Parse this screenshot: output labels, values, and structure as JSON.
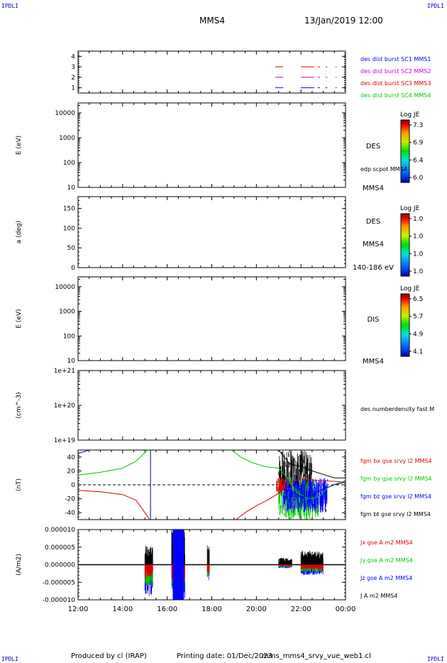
{
  "corner_label": "IPDLI",
  "header": {
    "spacecraft": "MMS4",
    "datetime": "13/Jan/2019 12:00"
  },
  "footer": {
    "produced": "Produced by cl (IRAP)",
    "printing": "Printing date: 01/Dec/2023",
    "file": "mms_mms4_srvy_vue_web1.cl"
  },
  "time_axis": {
    "ticks": [
      "12:00",
      "14:00",
      "16:00",
      "18:00",
      "20:00",
      "22:00",
      "00:00"
    ]
  },
  "colors": {
    "blue": "#0000ff",
    "magenta": "#cc00cc",
    "red": "#dd0000",
    "green": "#00cc00",
    "black": "#000000"
  },
  "chart_data": [
    {
      "type": "line",
      "panel": "burst",
      "yticks": [
        "4",
        "3",
        "2",
        "1"
      ],
      "ylim": [
        0.5,
        4.5
      ],
      "legend": [
        {
          "label": "des dist burst SC1 MMS1",
          "color": "#0000ff"
        },
        {
          "label": "des dist burst SC2 MMS2",
          "color": "#cc00cc"
        },
        {
          "label": "des dist burst SC3 MMS3",
          "color": "#dd0000"
        },
        {
          "label": "des dist burst SC4 MMS4",
          "color": "#00cc00"
        }
      ],
      "series": [
        {
          "level": 3,
          "intervals": [
            [
              20.85,
              21.2
            ],
            [
              22.0,
              22.6
            ],
            [
              22.75,
              22.85
            ],
            [
              23.1,
              23.18
            ],
            [
              23.55,
              23.6
            ]
          ]
        },
        {
          "level": 2,
          "intervals": [
            [
              20.85,
              21.2
            ],
            [
              22.0,
              22.6
            ],
            [
              22.75,
              22.85
            ],
            [
              23.1,
              23.18
            ],
            [
              23.55,
              23.6
            ]
          ]
        },
        {
          "level": 1,
          "intervals": [
            [
              20.85,
              21.2
            ],
            [
              22.0,
              22.6
            ],
            [
              22.75,
              22.85
            ],
            [
              23.1,
              23.18
            ],
            [
              23.55,
              23.6
            ]
          ]
        }
      ]
    },
    {
      "type": "heatmap",
      "panel": "des-energy",
      "ylabel": "E (eV)",
      "scale": "log",
      "yticks": [
        "10000",
        "1000",
        "100",
        "10"
      ],
      "ylim": [
        10,
        25000
      ],
      "right_labels": [
        "DES",
        "edp scpot MMS4",
        "MMS4"
      ],
      "colorbar": {
        "title": "Log JE",
        "ticks": [
          "7.3",
          "6.9",
          "6.4",
          "6.0"
        ]
      }
    },
    {
      "type": "heatmap",
      "panel": "des-pitch",
      "ylabel": "a (deg)",
      "yticks": [
        "150",
        "100",
        "50",
        "0"
      ],
      "ylim": [
        0,
        180
      ],
      "right_labels": [
        "DES",
        "MMS4",
        "140-186 eV"
      ],
      "colorbar": {
        "title": "Log JE",
        "ticks": [
          "1.0",
          "1.0",
          "1.0",
          "1.0"
        ]
      }
    },
    {
      "type": "heatmap",
      "panel": "dis-energy",
      "ylabel": "E (eV)",
      "scale": "log",
      "yticks": [
        "10000",
        "1000",
        "100",
        "10"
      ],
      "ylim": [
        10,
        25000
      ],
      "right_labels": [
        "DIS",
        "MMS4"
      ],
      "colorbar": {
        "title": "Log JE",
        "ticks": [
          "6.5",
          "5.7",
          "4.9",
          "4.1"
        ]
      }
    },
    {
      "type": "line",
      "panel": "density",
      "ylabel": "(cm^-3)",
      "scale": "log",
      "yticks": [
        "1e+21",
        "1e+20",
        "1e+19"
      ],
      "ylim": [
        1e+19,
        1e+21
      ],
      "right_labels": [
        "des numberdensity fast M"
      ]
    },
    {
      "type": "line",
      "panel": "fgm",
      "ylabel": "(nT)",
      "yticks": [
        "40",
        "20",
        "0",
        "-20",
        "-40"
      ],
      "ylim": [
        -50,
        50
      ],
      "legend": [
        {
          "label": "fgm bx gse srvy l2 MMS4",
          "color": "#dd0000"
        },
        {
          "label": "fgm by gse srvy l2 MMS4",
          "color": "#00cc00"
        },
        {
          "label": "fgm bz gse srvy l2 MMS4",
          "color": "#0000ff"
        },
        {
          "label": "fgm bt gse srvy l2 MMS4",
          "color": "#000000"
        }
      ],
      "series": [
        {
          "name": "bx",
          "color": "#dd0000",
          "points": [
            [
              12,
              -8
            ],
            [
              13,
              -10
            ],
            [
              14,
              -14
            ],
            [
              14.6,
              -22
            ],
            [
              15,
              -40
            ],
            [
              15.25,
              -52
            ]
          ]
        },
        {
          "name": "bx",
          "color": "#dd0000",
          "points": [
            [
              19.0,
              -52
            ],
            [
              19.5,
              -40
            ],
            [
              20.0,
              -30
            ],
            [
              20.5,
              -22
            ],
            [
              21.0,
              -12
            ],
            [
              21.3,
              -2
            ],
            [
              21.6,
              5
            ],
            [
              22.0,
              8
            ],
            [
              23.0,
              6
            ],
            [
              24.0,
              4
            ]
          ]
        },
        {
          "name": "by",
          "color": "#00cc00",
          "points": [
            [
              12,
              14
            ],
            [
              13,
              18
            ],
            [
              14,
              24
            ],
            [
              14.6,
              34
            ],
            [
              15,
              46
            ],
            [
              15.2,
              52
            ]
          ]
        },
        {
          "name": "by",
          "color": "#00cc00",
          "points": [
            [
              18.8,
              52
            ],
            [
              19.3,
              40
            ],
            [
              19.8,
              32
            ],
            [
              20.4,
              26
            ],
            [
              21.0,
              24
            ],
            [
              21.4,
              10
            ],
            [
              21.8,
              -10
            ],
            [
              22.3,
              -20
            ],
            [
              22.8,
              -18
            ],
            [
              23.2,
              -4
            ],
            [
              23.6,
              2
            ],
            [
              24.0,
              6
            ]
          ]
        },
        {
          "name": "bz",
          "color": "#0000ff",
          "points": [
            [
              12,
              45
            ],
            [
              12.5,
              50
            ]
          ]
        },
        {
          "name": "bz",
          "color": "#0000ff",
          "points": [
            [
              21.2,
              -5
            ],
            [
              21.6,
              -10
            ],
            [
              22.0,
              -18
            ],
            [
              22.5,
              -14
            ],
            [
              23.0,
              -6
            ],
            [
              23.5,
              0
            ],
            [
              24.0,
              4
            ]
          ]
        },
        {
          "name": "bt",
          "color": "#000000",
          "points": [
            [
              21.0,
              50
            ],
            [
              21.5,
              30
            ],
            [
              22.0,
              26
            ],
            [
              22.5,
              20
            ],
            [
              23.0,
              15
            ],
            [
              23.5,
              10
            ],
            [
              24.0,
              10
            ]
          ]
        }
      ],
      "vline_x": 15.25
    },
    {
      "type": "line",
      "panel": "current",
      "ylabel": "(A/m2)",
      "yticks": [
        "0.000010",
        "0.000005",
        "0.000000",
        "-0.000005",
        "-0.000010"
      ],
      "ylim": [
        -1e-05,
        1e-05
      ],
      "legend": [
        {
          "label": "Jx gse A m2 MMS4",
          "color": "#dd0000"
        },
        {
          "label": "Jy gse A m2 MMS4",
          "color": "#00cc00"
        },
        {
          "label": "Jz gse A m2 MMS4",
          "color": "#0000ff"
        },
        {
          "label": "J A m2 MMS4",
          "color": "#000000"
        }
      ],
      "bursts": [
        {
          "x": [
            15.0,
            15.35
          ],
          "ymax": 5.5e-06,
          "ymin": -9e-06
        },
        {
          "x": [
            16.2,
            16.8
          ],
          "ymax": 1e-05,
          "ymin": -1e-05
        },
        {
          "x": [
            17.8,
            17.9
          ],
          "ymax": 5.5e-06,
          "ymin": -5e-06
        },
        {
          "x": [
            21.0,
            21.6
          ],
          "ymax": 2e-06,
          "ymin": -1e-06
        },
        {
          "x": [
            22.0,
            23.0
          ],
          "ymax": 4e-06,
          "ymin": -3e-06
        }
      ]
    }
  ]
}
